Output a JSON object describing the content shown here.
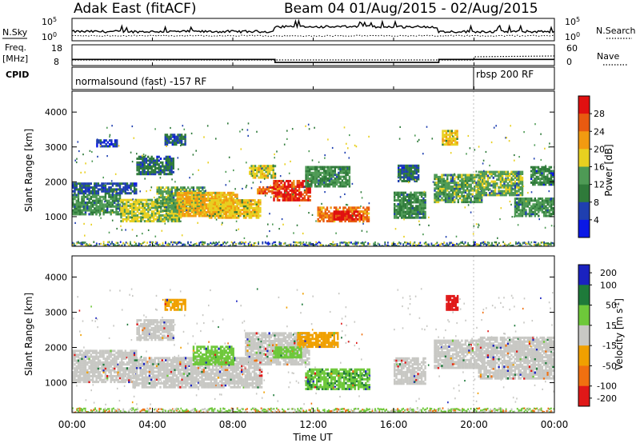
{
  "header": {
    "title": "Adak East (fitACF)",
    "subtitle": "Beam 04 01/Aug/2015 - 02/Aug/2015"
  },
  "top_panels": {
    "nsky_label": "N.Sky",
    "nsky_tick_hi": "10^5",
    "nsky_tick_lo": "10^0",
    "nsearch_label": "N.Search",
    "nsearch_tick_hi": "10^5",
    "nsearch_tick_lo": "10^0",
    "freq_label_1": "Freq.",
    "freq_label_2": "[MHz]",
    "freq_tick_hi": "18",
    "freq_tick_lo": "8",
    "nave_label": "Nave",
    "nave_tick_hi": "60",
    "nave_tick_lo": "0",
    "cpid_label": "CPID",
    "cpid_mode_1": "normalsound (fast) -157 RF",
    "cpid_mode_2": "rbsp 200 RF"
  },
  "colors": {
    "power_scale": [
      "#0a18e6",
      "#1f3fb0",
      "#2f7a3a",
      "#4e9a55",
      "#e8d020",
      "#f29a10",
      "#e85a10",
      "#e01010"
    ],
    "velocity_scale": [
      "#1a22c0",
      "#1e7a3a",
      "#6ec83a",
      "#b4b4b4",
      "#f0a000",
      "#f07010",
      "#e01818"
    ],
    "velocity_gray": "#c8c8c4"
  },
  "chart_data": [
    {
      "type": "heatmap",
      "name": "power",
      "ylabel": "Slant Range [km]",
      "yticks": [
        "1000",
        "2000",
        "3000",
        "4000"
      ],
      "ylim": [
        150,
        4600
      ],
      "xlim": [
        "00:00",
        "24:00"
      ],
      "colorbar_label": "Power [dB]",
      "colorbar_ticks": [
        "4",
        "8",
        "12",
        "16",
        "20",
        "24",
        "28"
      ],
      "colorbar_range": [
        0,
        32
      ],
      "patches": [
        {
          "t0": 0.0,
          "t1": 2.4,
          "r0": 1050,
          "r1": 1650,
          "v": 13
        },
        {
          "t0": 0.0,
          "t1": 3.2,
          "r0": 1650,
          "r1": 1950,
          "v": 7
        },
        {
          "t0": 2.4,
          "t1": 5.4,
          "r0": 850,
          "r1": 1500,
          "v": 17
        },
        {
          "t0": 4.2,
          "t1": 6.6,
          "r0": 1150,
          "r1": 1850,
          "v": 14
        },
        {
          "t0": 5.2,
          "t1": 8.2,
          "r0": 1000,
          "r1": 1700,
          "v": 21
        },
        {
          "t0": 6.8,
          "t1": 9.4,
          "r0": 950,
          "r1": 1500,
          "v": 19
        },
        {
          "t0": 8.8,
          "t1": 10.1,
          "r0": 2100,
          "r1": 2450,
          "v": 18
        },
        {
          "t0": 9.2,
          "t1": 10.1,
          "r0": 1650,
          "r1": 1850,
          "v": 26
        },
        {
          "t0": 10.0,
          "t1": 11.8,
          "r0": 1450,
          "r1": 2050,
          "v": 29
        },
        {
          "t0": 11.6,
          "t1": 13.8,
          "r0": 1850,
          "r1": 2450,
          "v": 12
        },
        {
          "t0": 12.2,
          "t1": 14.8,
          "r0": 850,
          "r1": 1250,
          "v": 25
        },
        {
          "t0": 13.0,
          "t1": 14.4,
          "r0": 900,
          "r1": 1150,
          "v": 30
        },
        {
          "t0": 3.2,
          "t1": 5.0,
          "r0": 2200,
          "r1": 2750,
          "v": 9
        },
        {
          "t0": 4.6,
          "t1": 5.6,
          "r0": 3050,
          "r1": 3350,
          "v": 8
        },
        {
          "t0": 1.2,
          "t1": 2.2,
          "r0": 3000,
          "r1": 3200,
          "v": 6
        },
        {
          "t0": 16.0,
          "t1": 17.6,
          "r0": 950,
          "r1": 1700,
          "v": 12
        },
        {
          "t0": 16.2,
          "t1": 17.2,
          "r0": 2000,
          "r1": 2450,
          "v": 9
        },
        {
          "t0": 18.4,
          "t1": 19.2,
          "r0": 3050,
          "r1": 3450,
          "v": 19
        },
        {
          "t0": 18.0,
          "t1": 20.4,
          "r0": 1400,
          "r1": 2200,
          "v": 14
        },
        {
          "t0": 20.2,
          "t1": 22.4,
          "r0": 1600,
          "r1": 2300,
          "v": 15
        },
        {
          "t0": 22.0,
          "t1": 24.0,
          "r0": 1000,
          "r1": 1500,
          "v": 13
        },
        {
          "t0": 22.8,
          "t1": 24.0,
          "r0": 1900,
          "r1": 2400,
          "v": 11
        }
      ]
    },
    {
      "type": "heatmap",
      "name": "velocity",
      "ylabel": "Slant Range [km]",
      "yticks": [
        "1000",
        "2000",
        "3000",
        "4000"
      ],
      "ylim": [
        150,
        4600
      ],
      "xlim": [
        "00:00",
        "24:00"
      ],
      "xlabel": "Time UT",
      "xticks": [
        "00:00",
        "04:00",
        "08:00",
        "12:00",
        "16:00",
        "20:00",
        "00:00"
      ],
      "colorbar_label": "Velocity [m s^-1]",
      "colorbar_ticks": [
        "200",
        "100",
        "50",
        "15",
        "-15",
        "-50",
        "-100",
        "-200"
      ],
      "colorbar_range": [
        -250,
        250
      ],
      "patches": [
        {
          "t0": 0.0,
          "t1": 3.2,
          "r0": 1000,
          "r1": 1900,
          "v": 0
        },
        {
          "t0": 3.0,
          "t1": 9.4,
          "r0": 850,
          "r1": 1700,
          "v": 5
        },
        {
          "t0": 3.2,
          "t1": 5.0,
          "r0": 2200,
          "r1": 2800,
          "v": -5
        },
        {
          "t0": 4.6,
          "t1": 5.6,
          "r0": 3050,
          "r1": 3350,
          "v": -30
        },
        {
          "t0": 6.0,
          "t1": 8.0,
          "r0": 1500,
          "r1": 2000,
          "v": 30
        },
        {
          "t0": 8.6,
          "t1": 11.8,
          "r0": 1500,
          "r1": 2400,
          "v": 0
        },
        {
          "t0": 10.0,
          "t1": 11.4,
          "r0": 1700,
          "r1": 2000,
          "v": 40
        },
        {
          "t0": 11.6,
          "t1": 14.8,
          "r0": 800,
          "r1": 1400,
          "v": 45
        },
        {
          "t0": 11.2,
          "t1": 13.2,
          "r0": 2000,
          "r1": 2400,
          "v": -30
        },
        {
          "t0": 16.0,
          "t1": 17.6,
          "r0": 950,
          "r1": 1700,
          "v": 0
        },
        {
          "t0": 18.6,
          "t1": 19.2,
          "r0": 3050,
          "r1": 3450,
          "v": -230
        },
        {
          "t0": 18.0,
          "t1": 20.4,
          "r0": 1400,
          "r1": 2200,
          "v": 0
        },
        {
          "t0": 20.2,
          "t1": 24.0,
          "r0": 1100,
          "r1": 2300,
          "v": -5
        }
      ]
    }
  ]
}
